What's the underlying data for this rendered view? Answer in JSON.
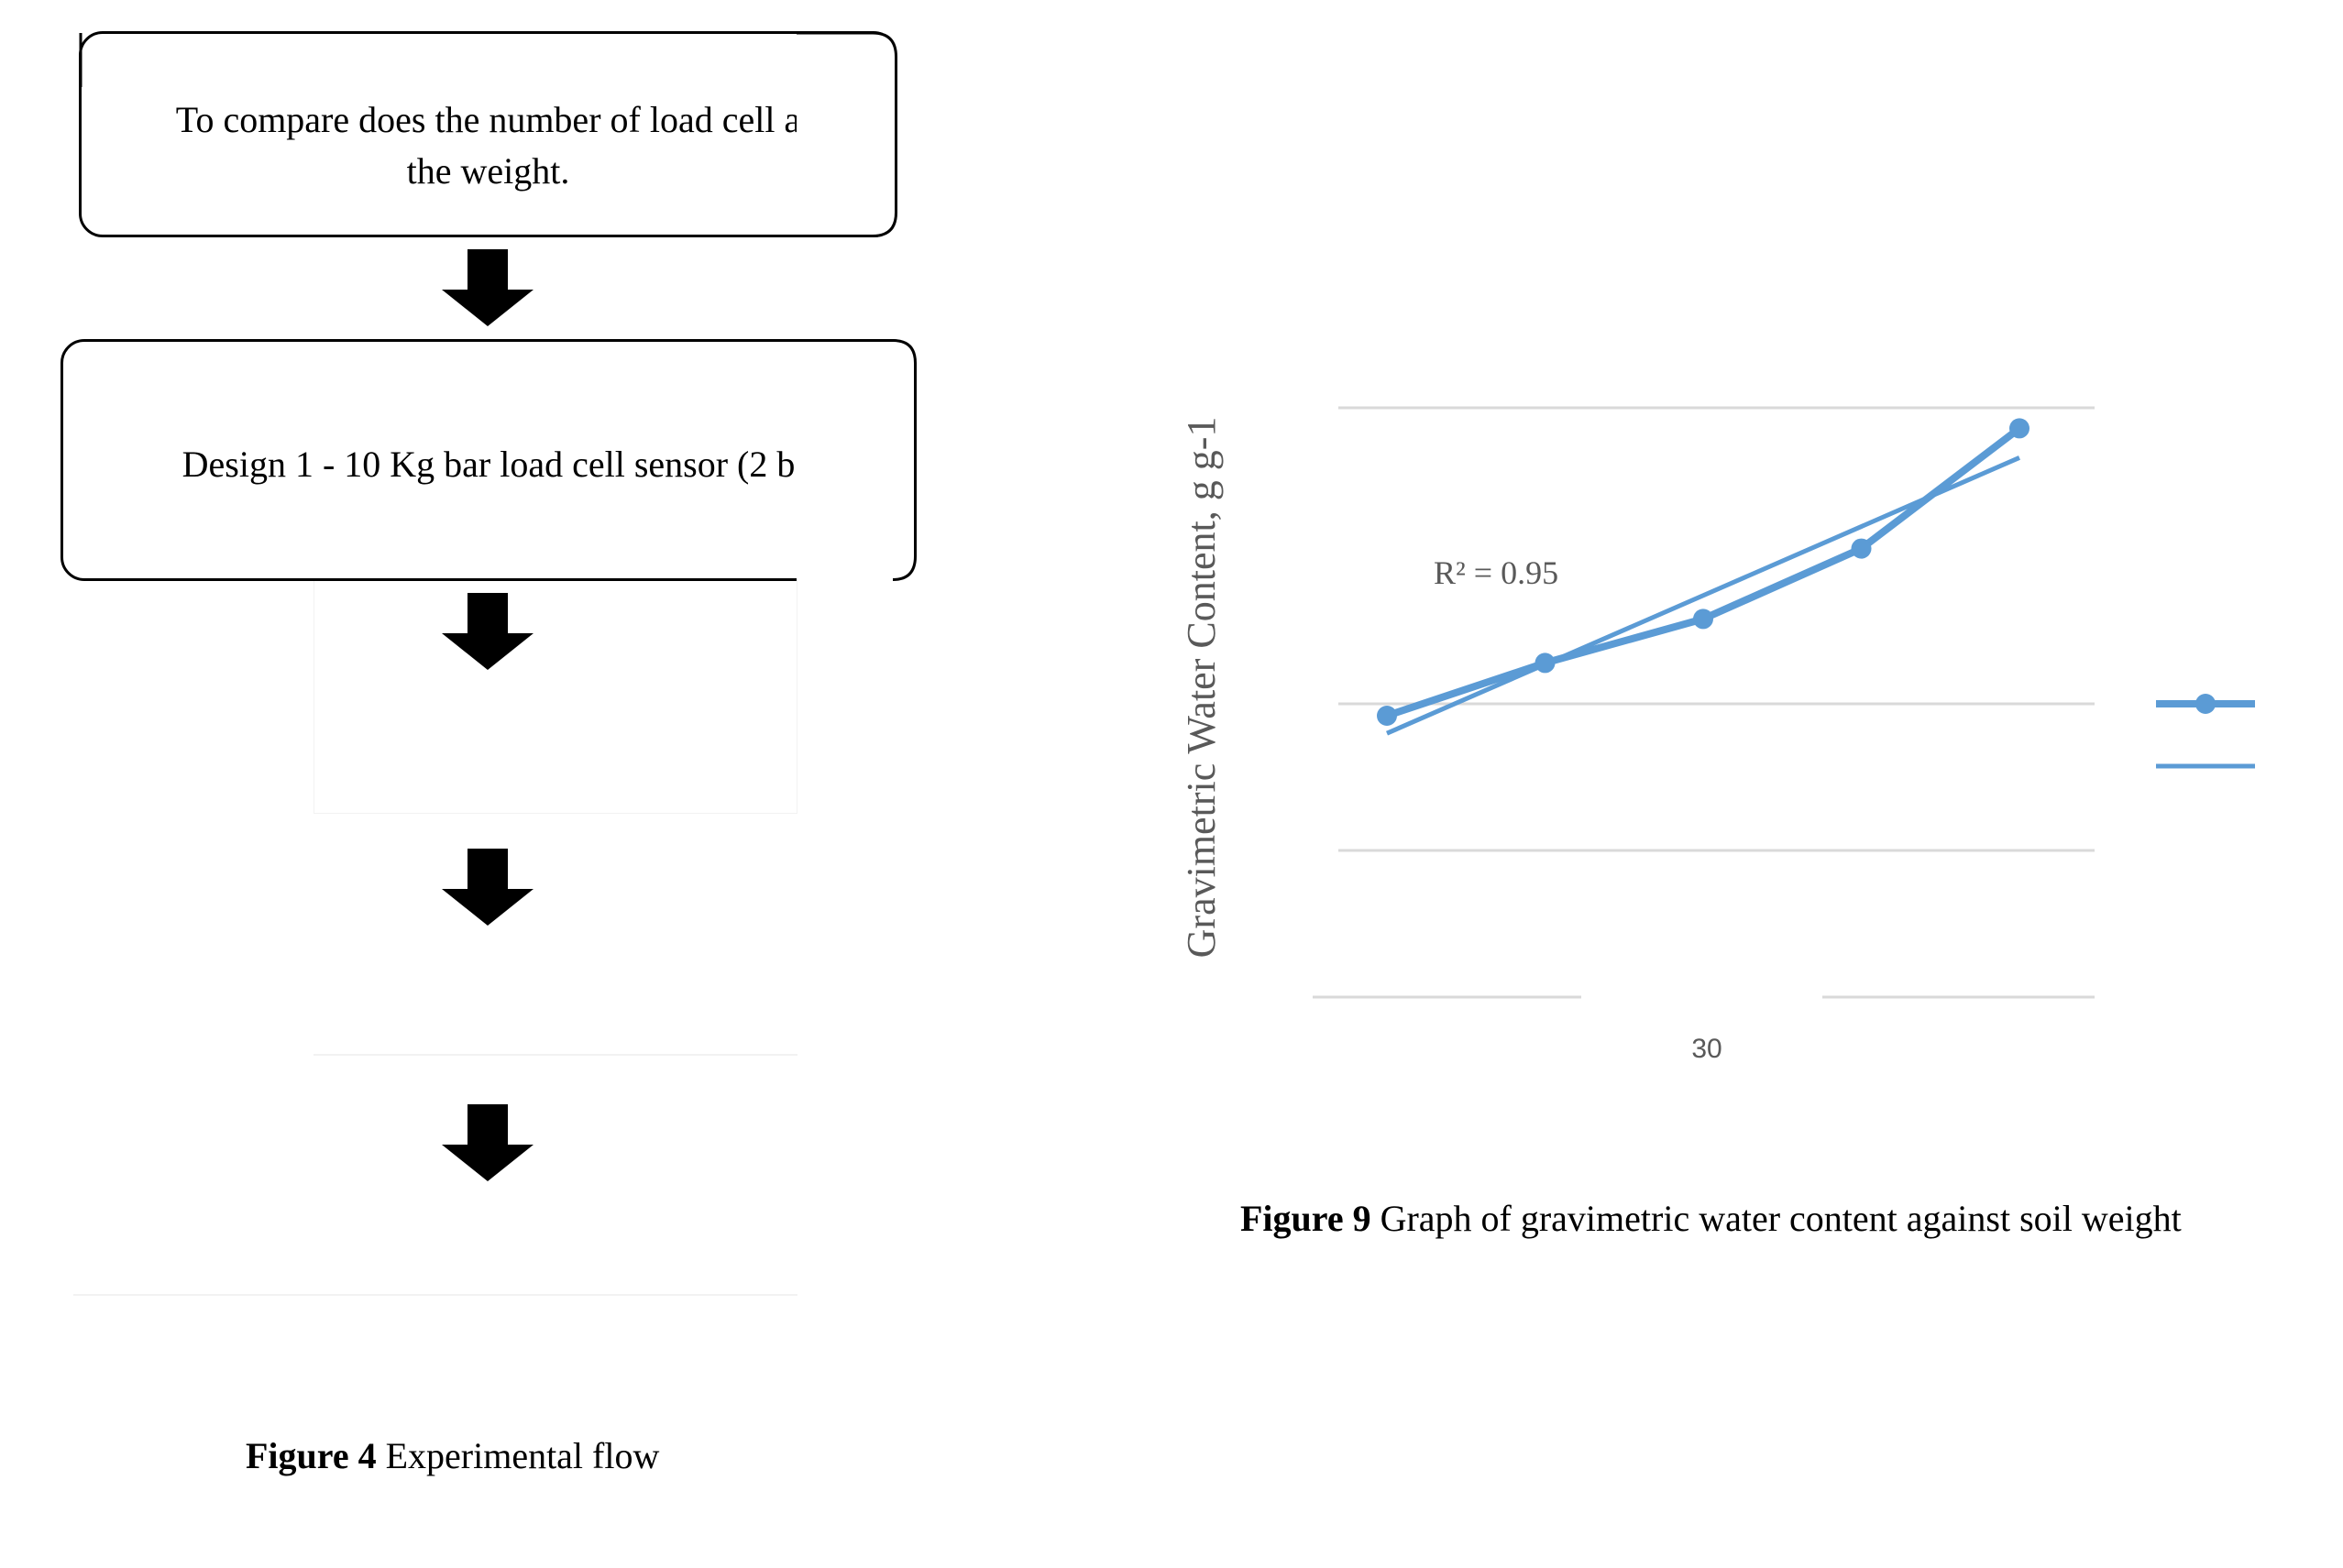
{
  "flowchart": {
    "boxes": [
      {
        "line1": "To compare does the number of load cell a",
        "line2": "the weight."
      },
      {
        "line1": "Design 1 - 10 Kg bar load cell sensor (2 b"
      }
    ],
    "caption": {
      "number": "Figure 4",
      "text": " Experimental flow"
    }
  },
  "figure9": {
    "caption": {
      "number": "Figure 9",
      "text": " Graph of gravimetric water content against soil weight"
    }
  },
  "chart_data": {
    "type": "line",
    "ylabel": "Gravimetric Water Content, g g-1",
    "x_tick_labels": [
      "30"
    ],
    "series_color": "#5b9bd5",
    "series": [
      {
        "name": "",
        "type": "line-with-markers",
        "x": [
          10,
          20,
          30,
          40,
          50
        ],
        "values": [
          0.205,
          0.223,
          0.238,
          0.262,
          0.303
        ]
      },
      {
        "name": "",
        "type": "linear-trendline",
        "x": [
          10,
          50
        ],
        "values": [
          0.199,
          0.293
        ]
      }
    ],
    "annotation": "R² = 0.95",
    "gridlines": true,
    "legend_position": "right"
  }
}
